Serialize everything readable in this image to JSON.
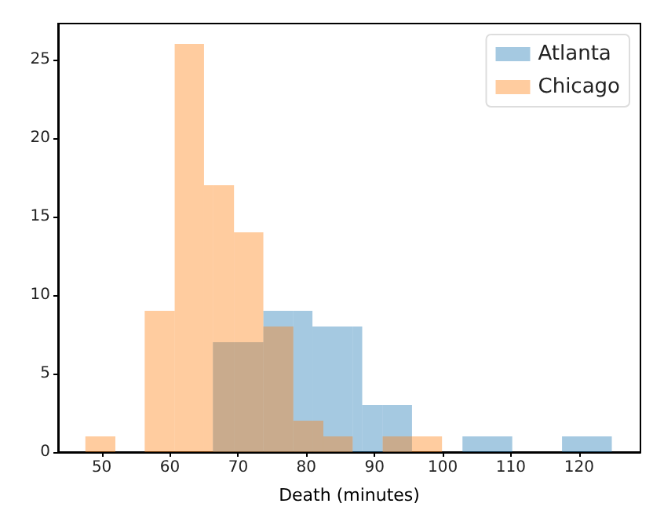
{
  "chart_data": {
    "type": "histogram",
    "xlabel": "Death (minutes)",
    "bins": [
      47.6,
      52.0,
      56.3,
      60.7,
      65.0,
      66.3,
      69.4,
      73.7,
      78.1,
      80.9,
      82.5,
      86.8,
      88.2,
      91.2,
      95.5,
      99.9,
      102.9,
      110.2,
      117.5,
      124.8
    ],
    "series": [
      {
        "name": "Atlanta",
        "color": "#1f77b4",
        "values": [
          0,
          0,
          0,
          0,
          0,
          7,
          7,
          9,
          9,
          8,
          8,
          8,
          3,
          3,
          0,
          0,
          1,
          0,
          1
        ]
      },
      {
        "name": "Chicago",
        "color": "#ff7f0e",
        "values": [
          1,
          0,
          9,
          26,
          17,
          17,
          14,
          8,
          2,
          2,
          1,
          0,
          0,
          1,
          1,
          0,
          0,
          0,
          0
        ]
      }
    ],
    "xlim": [
      43.6,
      129
    ],
    "xticks": [
      50,
      60,
      70,
      80,
      90,
      100,
      110,
      120
    ],
    "ylim": [
      0,
      27.3
    ],
    "yticks": [
      0,
      5,
      10,
      15,
      20,
      25
    ],
    "legend": "top right"
  }
}
